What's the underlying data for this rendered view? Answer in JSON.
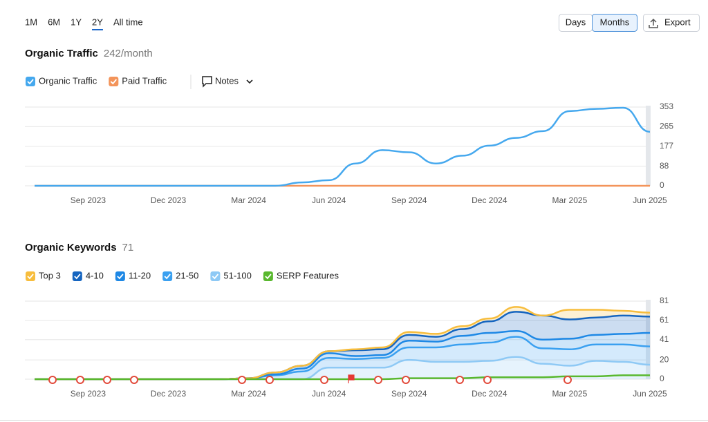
{
  "toolbar": {
    "periods": [
      "1M",
      "6M",
      "1Y",
      "2Y",
      "All time"
    ],
    "selected_period": "2Y",
    "granularity": [
      "Days",
      "Months"
    ],
    "selected_granularity": "Months",
    "export": "Export"
  },
  "chart_data": [
    {
      "type": "line",
      "title": "Organic Traffic",
      "summary": "242/month",
      "notes": "Notes",
      "categories": [
        null,
        null,
        "Sep 2023",
        null,
        null,
        "Dec 2023",
        null,
        null,
        "Mar 2024",
        null,
        null,
        "Jun 2024",
        null,
        null,
        "Sep 2024",
        null,
        null,
        "Dec 2024",
        null,
        null,
        "Mar 2025",
        null,
        null,
        "Jun 2025"
      ],
      "series": [
        {
          "name": "Organic Traffic",
          "color": "#45a8ee",
          "values": [
            0,
            0,
            0,
            0,
            0,
            0,
            0,
            0,
            0,
            0,
            15,
            25,
            100,
            160,
            150,
            100,
            135,
            180,
            215,
            245,
            335,
            345,
            350,
            242
          ]
        },
        {
          "name": "Paid Traffic",
          "color": "#f3945a",
          "values": [
            0,
            0,
            0,
            0,
            0,
            0,
            0,
            0,
            0,
            0,
            0,
            0,
            0,
            0,
            0,
            0,
            0,
            0,
            0,
            0,
            0,
            0,
            0,
            0
          ]
        }
      ],
      "ylim": [
        0,
        353
      ],
      "yticks": [
        0,
        88,
        177,
        265,
        353
      ],
      "grid": true
    },
    {
      "type": "area",
      "title": "Organic Keywords",
      "summary": 71,
      "stacked": true,
      "categories": [
        null,
        null,
        "Sep 2023",
        null,
        null,
        "Dec 2023",
        null,
        null,
        "Mar 2024",
        null,
        null,
        "Jun 2024",
        null,
        null,
        "Sep 2024",
        null,
        null,
        "Dec 2024",
        null,
        null,
        "Mar 2025",
        null,
        null,
        "Jun 2025"
      ],
      "series": [
        {
          "name": "Top 3",
          "color": "#f7bd3d",
          "values": [
            0,
            0,
            0,
            0,
            0,
            0,
            0,
            0,
            0,
            0,
            0,
            0,
            1,
            2,
            3,
            3,
            3,
            3,
            5,
            0,
            10,
            8,
            5,
            4
          ]
        },
        {
          "name": "4-10",
          "color": "#1565c0",
          "values": [
            0,
            0,
            0,
            0,
            0,
            0,
            0,
            0,
            0,
            2,
            3,
            2,
            6,
            6,
            6,
            5,
            7,
            12,
            20,
            25,
            20,
            18,
            19,
            17
          ]
        },
        {
          "name": "11-20",
          "color": "#1e88e5",
          "values": [
            0,
            0,
            0,
            0,
            0,
            0,
            0,
            0,
            0,
            1,
            3,
            5,
            3,
            3,
            7,
            6,
            9,
            10,
            6,
            9,
            11,
            10,
            11,
            14
          ]
        },
        {
          "name": "21-50",
          "color": "#3aa0f0",
          "values": [
            0,
            0,
            0,
            0,
            0,
            0,
            0,
            0,
            1,
            4,
            8,
            10,
            9,
            10,
            13,
            15,
            18,
            19,
            21,
            16,
            17,
            17,
            18,
            19
          ]
        },
        {
          "name": "51-100",
          "color": "#8ec9f5",
          "values": [
            0,
            0,
            0,
            0,
            0,
            0,
            0,
            0,
            0,
            0,
            0,
            12,
            12,
            12,
            20,
            18,
            18,
            19,
            23,
            16,
            14,
            19,
            18,
            15
          ]
        },
        {
          "name": "SERP Features",
          "color": "#59b82e",
          "stacked": false,
          "values": [
            0,
            0,
            0,
            0,
            0,
            0,
            0,
            0,
            0,
            0,
            0,
            0,
            0,
            0,
            1,
            1,
            1,
            2,
            2,
            2,
            3,
            3,
            4,
            4
          ]
        }
      ],
      "ylim": [
        0,
        81
      ],
      "yticks": [
        0,
        20,
        41,
        61,
        81
      ],
      "grid": true
    }
  ]
}
